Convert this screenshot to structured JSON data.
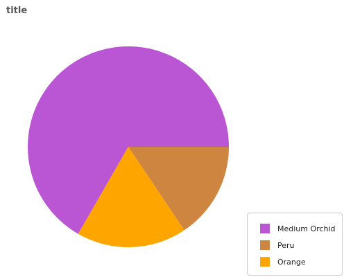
{
  "chart_data": {
    "type": "pie",
    "title": "title",
    "slices": [
      {
        "label": "Medium Orchid",
        "value": 66.7,
        "color": "#ba55d3"
      },
      {
        "label": "Peru",
        "value": 15.6,
        "color": "#cd853f"
      },
      {
        "label": "Orange",
        "value": 17.7,
        "color": "#ffa500"
      }
    ],
    "legend_position": "bottom-right"
  }
}
